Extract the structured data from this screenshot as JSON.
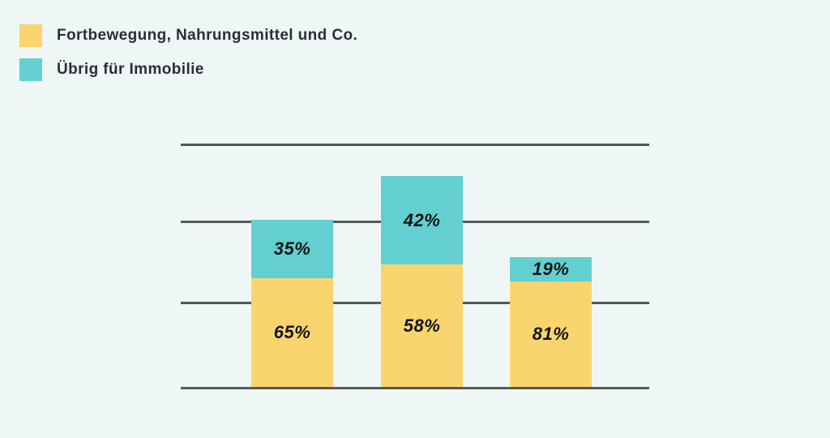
{
  "legend": {
    "items": [
      {
        "label": "Fortbewegung, Nahrungsmittel und Co.",
        "color": "#FAD46E"
      },
      {
        "label": "Übrig für Immobilie",
        "color": "#63CFD0"
      }
    ]
  },
  "chart_data": {
    "type": "bar",
    "stacked": true,
    "orientation": "vertical",
    "categories": [
      "",
      "",
      ""
    ],
    "series": [
      {
        "name": "Fortbewegung, Nahrungsmittel und Co.",
        "values": [
          65,
          58,
          81
        ],
        "color": "#FAD46E"
      },
      {
        "name": "Übrig für Immobilie",
        "values": [
          35,
          42,
          19
        ],
        "color": "#63CFD0"
      }
    ],
    "data_labels": [
      "65%",
      "58%",
      "81%",
      "35%",
      "42%",
      "19%"
    ],
    "value_suffix": "%",
    "ylim": [
      0,
      100
    ],
    "grid": "horizontal-only",
    "gridline_count": 4,
    "axis_tick_labels_visible": false,
    "legend_position": "top-left",
    "title": ""
  },
  "colors": {
    "background": "#EFF7F6",
    "gridline": "#56585B",
    "legend_text": "#2D2D35",
    "data_label_text": "#141414",
    "series_yellow": "#FAD46E",
    "series_teal": "#63CFD0"
  }
}
